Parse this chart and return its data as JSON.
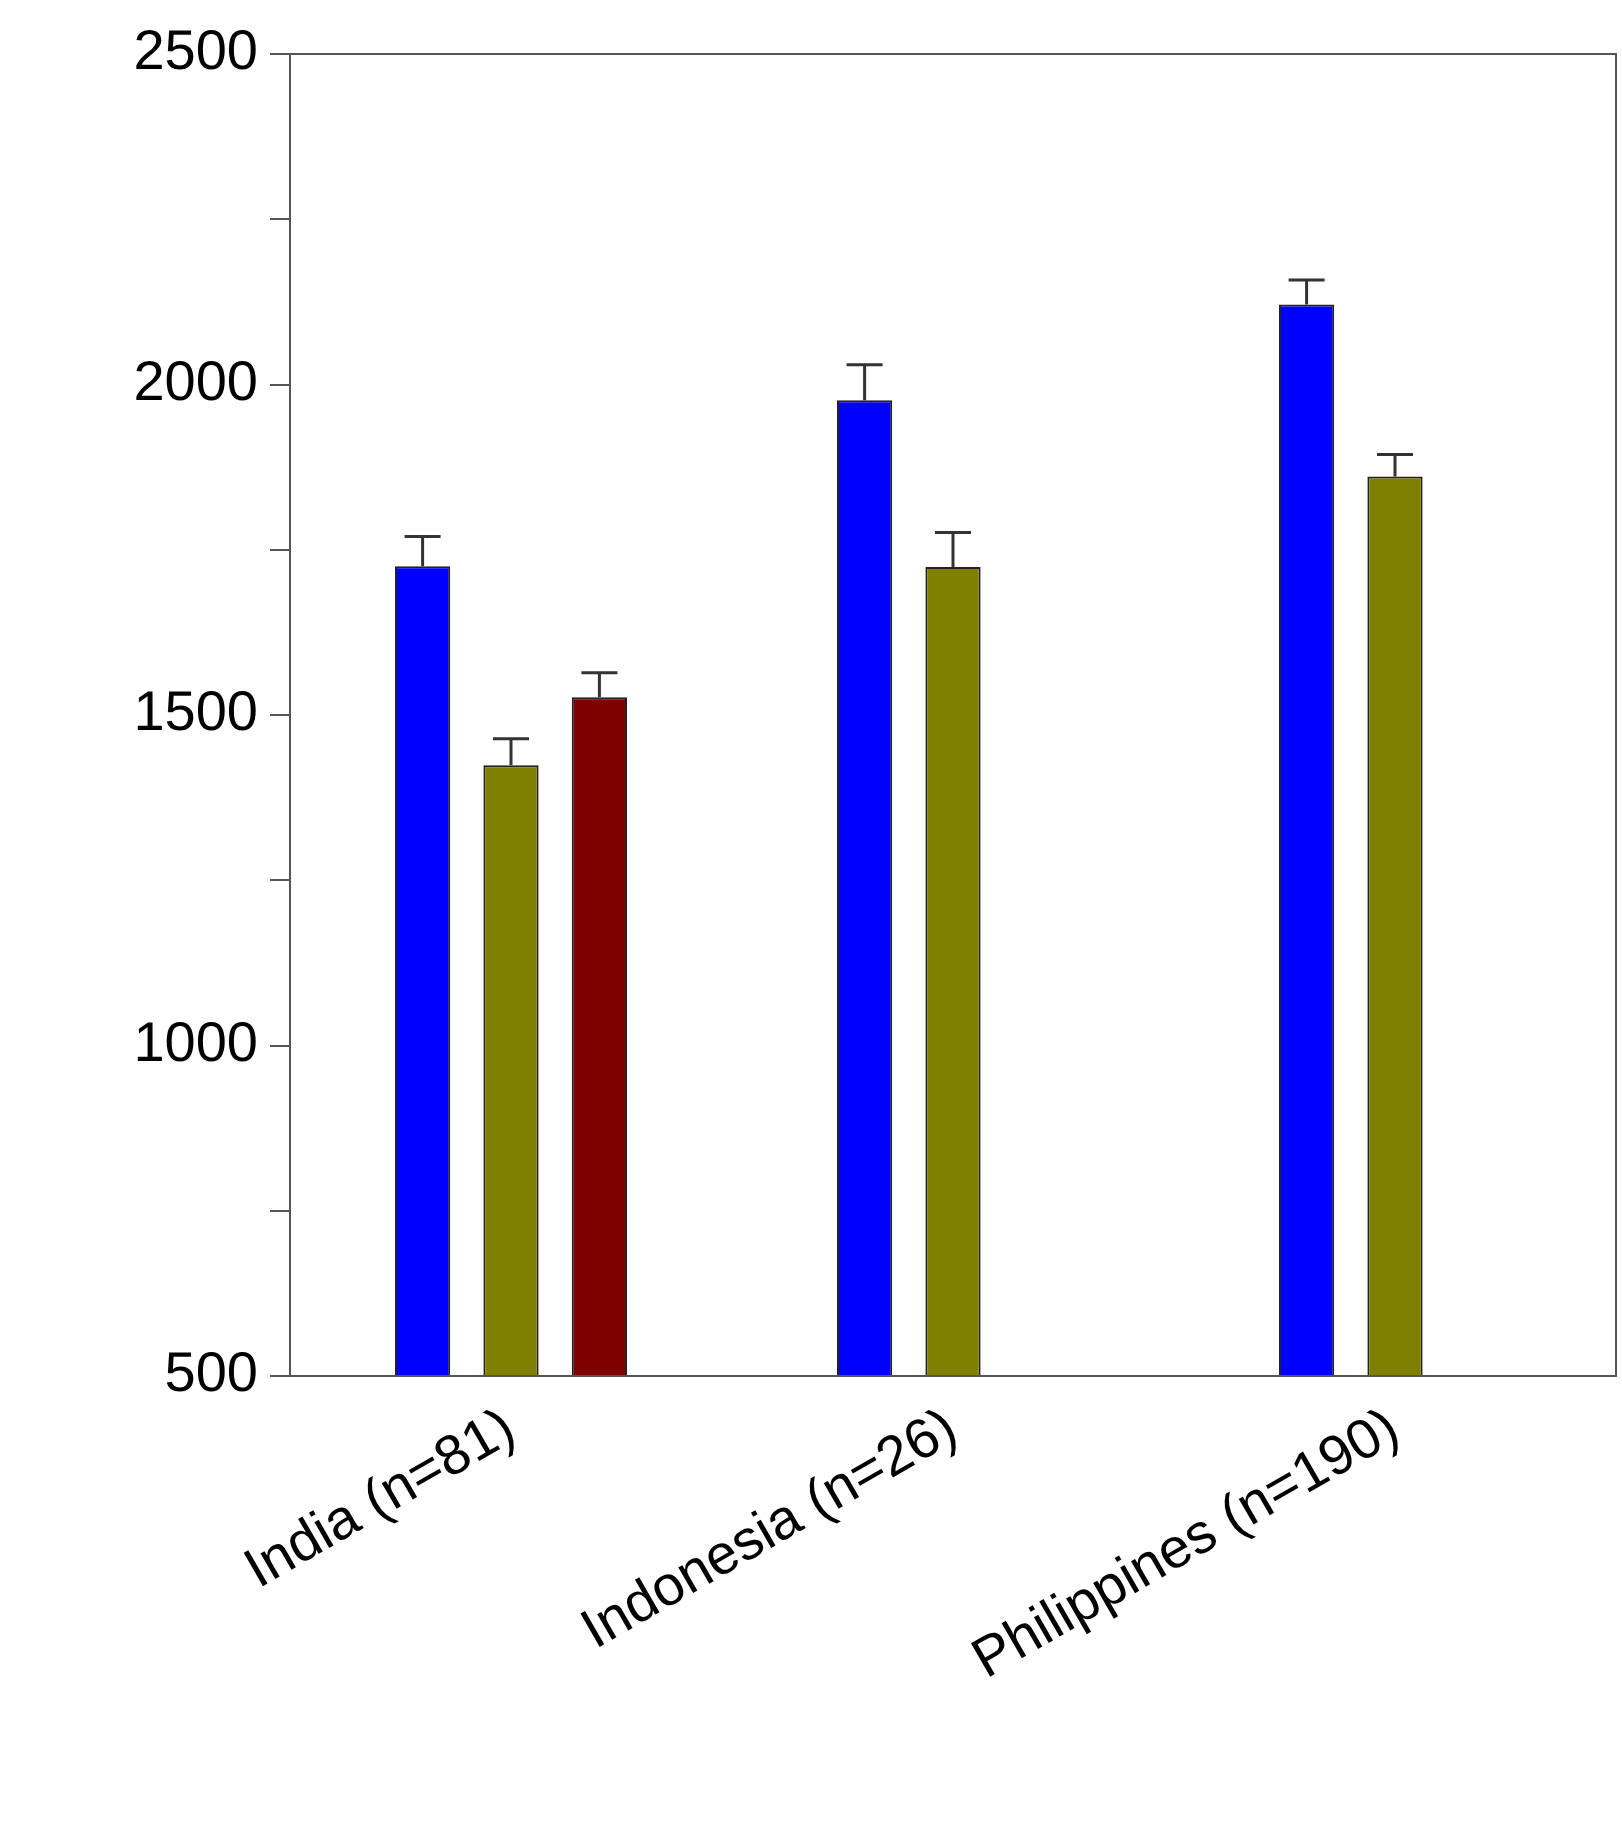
{
  "chart_data": {
    "type": "bar",
    "categories": [
      "India (n=81)",
      "Indonesia (n=26)",
      "Philippines (n=190)"
    ],
    "series": [
      {
        "color": "#0000ff",
        "values": [
          1725,
          1976,
          2121
        ],
        "errors": [
          [
            1725,
            1770
          ],
          [
            1976,
            2030
          ],
          [
            2121,
            2158
          ]
        ]
      },
      {
        "color": "#808000",
        "values": [
          1424,
          1724,
          1861
        ],
        "errors": [
          [
            1424,
            1464
          ],
          [
            1724,
            1776
          ],
          [
            1861,
            1894
          ]
        ]
      },
      {
        "color": "#800000",
        "values": [
          1527,
          null,
          null
        ],
        "errors": [
          [
            1527,
            1564
          ],
          null,
          null
        ]
      }
    ],
    "ylim": [
      500,
      2500
    ],
    "yticks": [
      500,
      {
        "value": 750,
        "label": null
      },
      1000,
      {
        "value": 1250,
        "label": null
      },
      1500,
      {
        "value": 1750,
        "label": null
      },
      2000,
      {
        "value": 2250,
        "label": null
      },
      2500
    ],
    "grid": false,
    "legend": false
  }
}
